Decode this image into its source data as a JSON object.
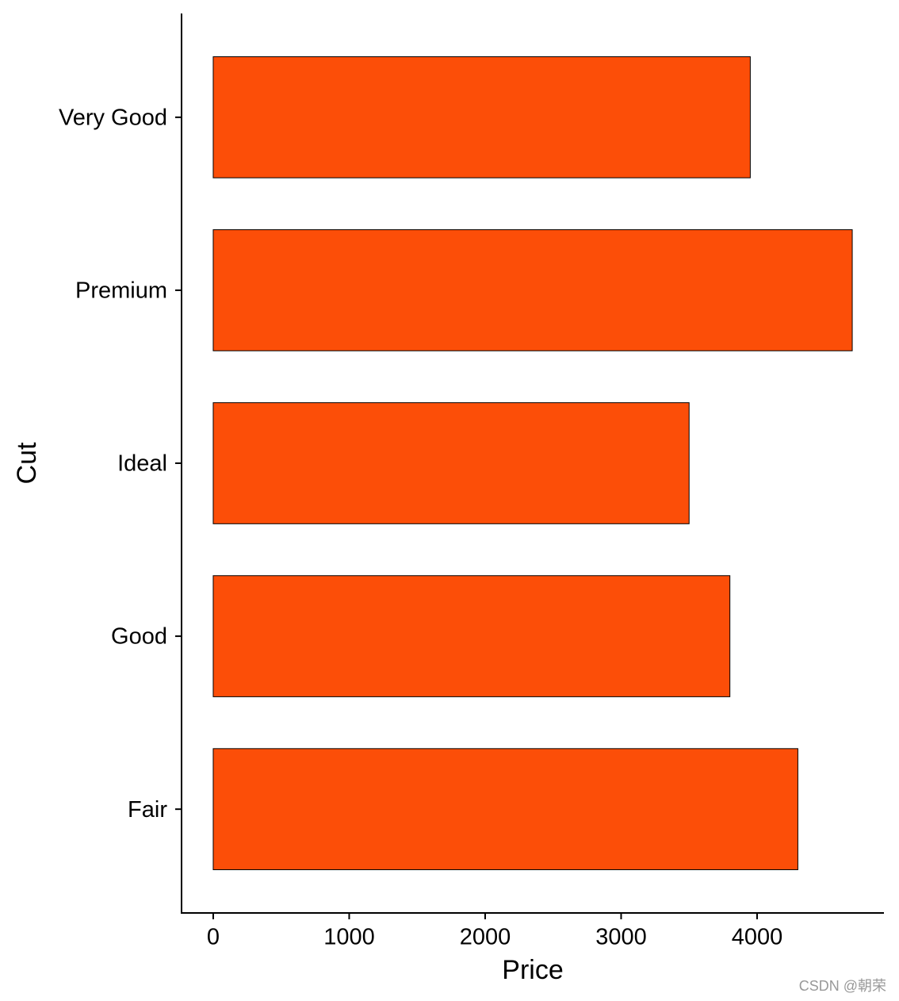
{
  "chart_data": {
    "type": "bar",
    "orientation": "horizontal",
    "xlabel": "Price",
    "ylabel": "Cut",
    "categories": [
      "Fair",
      "Good",
      "Ideal",
      "Premium",
      "Very Good"
    ],
    "values": [
      4300,
      3800,
      3500,
      4700,
      3950
    ],
    "color": "#fc4e08",
    "xlim": [
      -233,
      4933
    ],
    "xticks": [
      0,
      1000,
      2000,
      3000,
      4000
    ],
    "grid": false
  },
  "watermark": "CSDN @朝荣"
}
